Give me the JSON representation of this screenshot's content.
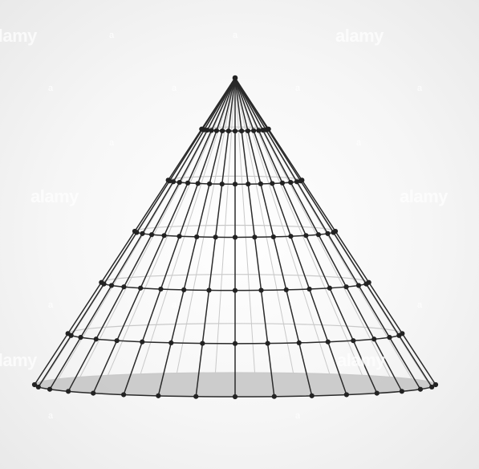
{
  "watermark": {
    "brand": "alamy",
    "mark": "a"
  },
  "colors": {
    "background_center": "#ffffff",
    "background_edge": "#e9e9e9",
    "wire": "#2a2a2a",
    "node": "#222222",
    "base_fill": "#bdbdbd",
    "hidden_wire": "#c9c9c9"
  },
  "figure": {
    "subject": "wireframe cone with node points",
    "rings": 6,
    "meridians": 16
  }
}
